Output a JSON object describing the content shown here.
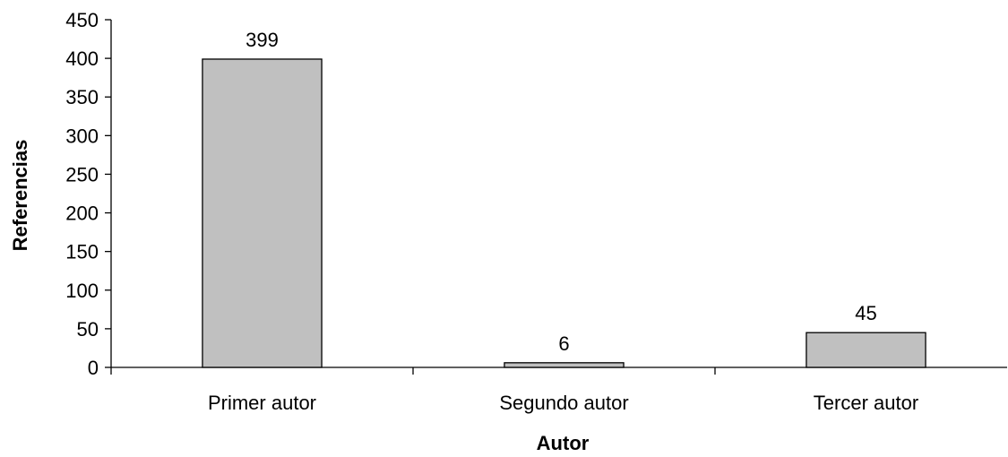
{
  "chart_data": {
    "type": "bar",
    "categories": [
      "Primer autor",
      "Segundo autor",
      "Tercer autor"
    ],
    "values": [
      399,
      6,
      45
    ],
    "data_labels": [
      "399",
      "6",
      "45"
    ],
    "title": "",
    "xlabel": "Autor",
    "ylabel": "Referencias",
    "ylim": [
      0,
      450
    ],
    "yticks": [
      0,
      50,
      100,
      150,
      200,
      250,
      300,
      350,
      400,
      450
    ],
    "grid": false,
    "legend": "none",
    "bar_color": "#c0c0c0",
    "bar_edge_color": "#000000"
  }
}
